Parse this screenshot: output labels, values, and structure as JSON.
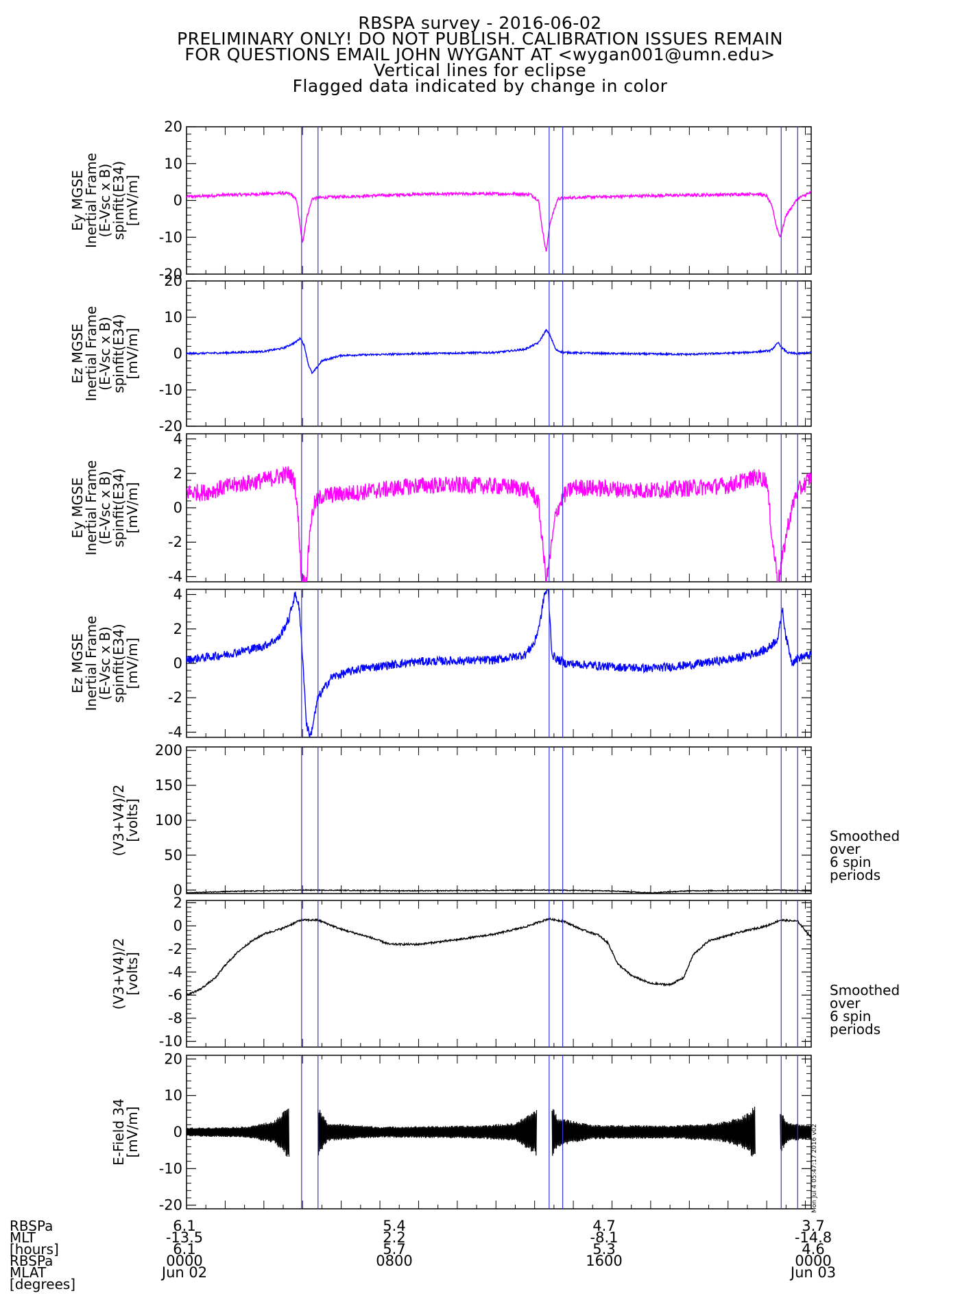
{
  "title_lines": [
    "RBSPA survey - 2016-06-02",
    "PRELIMINARY ONLY! DO NOT PUBLISH. CALIBRATION ISSUES REMAIN",
    "FOR QUESTIONS EMAIL JOHN WYGANT AT <wygan001@umn.edu>",
    "Vertical lines for eclipse",
    "Flagged data indicated by change in color"
  ],
  "colors": {
    "ey": "#ff00ff",
    "ez": "#0000ff",
    "black": "#000000",
    "eclipse": "#3333dd"
  },
  "eclipse_hours": [
    5.95,
    6.8,
    18.75,
    19.45,
    30.75,
    31.6
  ],
  "time_axis": {
    "range_hours": [
      0,
      32.3
    ],
    "label_hours": [
      0,
      10.77,
      21.53,
      32.3
    ],
    "columns": [
      {
        "lines": [
          "6.1",
          "-13.5",
          "6.1",
          "0000",
          "Jun 02"
        ]
      },
      {
        "lines": [
          "5.4",
          "2.2",
          "5.7",
          "0800",
          ""
        ]
      },
      {
        "lines": [
          "4.7",
          "-8.1",
          "5.3",
          "1600",
          ""
        ]
      },
      {
        "lines": [
          "3.7",
          "-14.8",
          "4.6",
          "0000",
          "Jun 03"
        ]
      }
    ],
    "row_labels": [
      "RBSPa",
      "MLT",
      "[hours]",
      "RBSPa",
      "MLAT",
      "[degrees]"
    ]
  },
  "side_notes": {
    "panel5": [
      "Smoothed",
      "over",
      "6 spin",
      "periods"
    ],
    "panel6": [
      "Smoothed",
      "over",
      "6 spin",
      "periods"
    ]
  },
  "timestamp_stamp": "Mon Jul  4 05:47:17 2016 v02",
  "chart_data": [
    {
      "type": "line",
      "id": "ey1",
      "color": "ey",
      "ylabel": [
        "Ey MGSE",
        "Inertial Frame",
        "(E-Vsc x B)",
        "spinfit(E34)",
        "[mV/m]"
      ],
      "ylim": [
        -20,
        20
      ],
      "yticks": [
        "20",
        "10",
        "0",
        "-10",
        "-20"
      ],
      "yticks_v": [
        20,
        10,
        0,
        -10,
        -20
      ],
      "x": [
        0,
        1,
        2,
        3,
        4,
        5,
        5.4,
        5.7,
        5.9,
        6.0,
        6.2,
        6.5,
        7,
        9,
        12,
        15,
        17,
        17.8,
        18.2,
        18.4,
        18.6,
        18.8,
        19.2,
        20,
        24,
        28,
        29.5,
        30,
        30.3,
        30.5,
        30.7,
        31,
        31.6,
        32.3
      ],
      "y": [
        1.0,
        1.2,
        1.5,
        1.6,
        1.8,
        2.0,
        1.7,
        0,
        -8,
        -11.5,
        -5,
        0.5,
        0.8,
        1.2,
        1.7,
        1.8,
        1.8,
        1.6,
        0,
        -8,
        -14,
        -6,
        0.5,
        0.8,
        1.3,
        1.6,
        1.8,
        1.2,
        -2,
        -7,
        -10,
        -4,
        0.5,
        2.2
      ],
      "noise": 0.4
    },
    {
      "type": "line",
      "id": "ez1",
      "color": "ez",
      "ylabel": [
        "Ez MGSE",
        "Inertial Frame",
        "(E-Vsc x B)",
        "spinfit(E34)",
        "[mV/m]"
      ],
      "ylim": [
        -20,
        20
      ],
      "yticks": [
        "20",
        "10",
        "0",
        "-10",
        "-20"
      ],
      "yticks_v": [
        20,
        10,
        0,
        -10,
        -20
      ],
      "x": [
        0,
        2,
        4,
        5,
        5.6,
        5.9,
        6.1,
        6.3,
        6.5,
        7,
        8,
        12,
        16,
        17.5,
        18.2,
        18.6,
        18.8,
        19.1,
        19.5,
        22,
        26,
        29,
        30.2,
        30.6,
        30.8,
        31.1,
        31.6,
        32.3
      ],
      "y": [
        0,
        0.2,
        0.6,
        1.5,
        3,
        4.3,
        2,
        -3,
        -5.5,
        -2,
        -0.5,
        0,
        0.3,
        1.2,
        3,
        6.5,
        5,
        1,
        0.3,
        0,
        -0.2,
        0.3,
        0.8,
        3,
        1.5,
        0.2,
        0,
        0.3
      ],
      "noise": 0.25
    },
    {
      "type": "line",
      "id": "ey2",
      "color": "ey",
      "ylabel": [
        "Ey MGSE",
        "Inertial Frame",
        "(E-Vsc x B)",
        "spinfit(E34)",
        "[mV/m]"
      ],
      "ylim": [
        -4.3,
        4.3
      ],
      "yticks": [
        "4",
        "2",
        "0",
        "-2",
        "-4"
      ],
      "yticks_v": [
        4,
        2,
        0,
        -2,
        -4
      ],
      "x": [
        0,
        1,
        2,
        3,
        4,
        5,
        5.3,
        5.6,
        5.8,
        5.95,
        6.2,
        6.4,
        6.6,
        7,
        9,
        12,
        15,
        17,
        17.8,
        18.2,
        18.4,
        18.6,
        18.9,
        19.1,
        19.5,
        20,
        24,
        28,
        29.5,
        30,
        30.3,
        30.6,
        31.1,
        31.5,
        32.3
      ],
      "y": [
        0.9,
        0.9,
        1.2,
        1.4,
        1.6,
        1.9,
        2.0,
        1.5,
        -1,
        -4.3,
        -4.3,
        -1,
        0.2,
        0.7,
        0.9,
        1.3,
        1.3,
        1.2,
        1.0,
        0.3,
        -2,
        -4.3,
        -2,
        -0.3,
        0.7,
        1.2,
        1.0,
        1.3,
        1.8,
        1.6,
        -2,
        -4.3,
        -1,
        0.8,
        1.8
      ],
      "noise": 0.5
    },
    {
      "type": "line",
      "id": "ez2",
      "color": "ez",
      "ylabel": [
        "Ez MGSE",
        "Inertial Frame",
        "(E-Vsc x B)",
        "spinfit(E34)",
        "[mV/m]"
      ],
      "ylim": [
        -4.3,
        4.3
      ],
      "yticks": [
        "4",
        "2",
        "0",
        "-2",
        "-4"
      ],
      "yticks_v": [
        4,
        2,
        0,
        -2,
        -4
      ],
      "x": [
        0,
        2,
        4,
        4.8,
        5.3,
        5.6,
        5.8,
        6.0,
        6.2,
        6.4,
        6.8,
        7.5,
        9,
        12,
        16,
        17.5,
        18.0,
        18.3,
        18.5,
        18.7,
        18.9,
        19.2,
        19.6,
        22,
        24,
        26,
        28.5,
        30,
        30.6,
        30.8,
        31.0,
        31.3,
        31.6,
        32.3
      ],
      "y": [
        0.2,
        0.5,
        1.0,
        1.5,
        2.6,
        4.0,
        3.5,
        0.5,
        -3.5,
        -4.3,
        -2,
        -0.8,
        -0.3,
        0.1,
        0.2,
        0.5,
        1.2,
        2.5,
        4.0,
        4.3,
        0.5,
        0.2,
        0,
        -0.2,
        -0.3,
        -0.1,
        0.3,
        0.8,
        1.5,
        3.2,
        1.5,
        0.1,
        0.3,
        0.5
      ],
      "noise": 0.25
    },
    {
      "type": "line",
      "id": "v1",
      "color": "black",
      "ylabel": [
        "(V3+V4)/2",
        "[volts]"
      ],
      "ylim": [
        -5,
        205
      ],
      "yticks": [
        "200",
        "150",
        "100",
        "50",
        "0"
      ],
      "yticks_v": [
        200,
        150,
        100,
        50,
        0
      ],
      "x": [
        0,
        2,
        6,
        12,
        18.6,
        22,
        24,
        26,
        30.5,
        32.3
      ],
      "y": [
        -4,
        -2,
        0,
        -1,
        0,
        -1,
        -4,
        -1,
        0,
        -1
      ],
      "noise": 0.6
    },
    {
      "type": "line",
      "id": "v2",
      "color": "black",
      "ylabel": [
        "(V3+V4)/2",
        "[volts]"
      ],
      "ylim": [
        -10.5,
        2.2
      ],
      "yticks": [
        "2",
        "0",
        "-2",
        "-4",
        "-6",
        "-8",
        "-10"
      ],
      "yticks_v": [
        2,
        0,
        -2,
        -4,
        -6,
        -8,
        -10
      ],
      "x": [
        0,
        0.7,
        1.5,
        2,
        2.7,
        3.3,
        4,
        5,
        5.9,
        6.8,
        8,
        9.5,
        10.5,
        12,
        14,
        16,
        17.5,
        18.7,
        19.5,
        20.4,
        21.3,
        21.8,
        22.3,
        23,
        24,
        25,
        25.7,
        26.2,
        27,
        28.5,
        30,
        30.7,
        31.6,
        32.3
      ],
      "y": [
        -6.0,
        -5.5,
        -4.5,
        -3.4,
        -2.2,
        -1.4,
        -0.7,
        -0.2,
        0.5,
        0.5,
        -0.3,
        -1.0,
        -1.6,
        -1.6,
        -1.2,
        -0.7,
        -0.1,
        0.6,
        0.4,
        -0.3,
        -0.8,
        -1.5,
        -3.3,
        -4.3,
        -5.0,
        -5.1,
        -4.5,
        -2.5,
        -1.3,
        -0.6,
        0.0,
        0.5,
        0.4,
        -1.0
      ],
      "noise": 0.08
    },
    {
      "type": "line",
      "id": "e34",
      "color": "black",
      "ylabel": [
        "E-Field 34",
        "[mV/m]"
      ],
      "ylim": [
        -21,
        21
      ],
      "yticks": [
        "20",
        "10",
        "0",
        "-10",
        "-20"
      ],
      "yticks_v": [
        20,
        10,
        0,
        -10,
        -20
      ],
      "envelope": [
        [
          0,
          1.2
        ],
        [
          3,
          1.5
        ],
        [
          4.5,
          3
        ],
        [
          5.1,
          6
        ],
        [
          5.3,
          8.5
        ]
      ],
      "segments": [
        [
          0,
          5.3
        ],
        [
          6.8,
          18.1
        ],
        [
          18.9,
          29.4
        ],
        [
          30.7,
          32.3
        ]
      ],
      "segment_envelopes": [
        [
          [
            0,
            1.2
          ],
          [
            3,
            1.5
          ],
          [
            4.5,
            3
          ],
          [
            5.1,
            6
          ],
          [
            5.3,
            8.5
          ]
        ],
        [
          [
            6.8,
            7
          ],
          [
            7.3,
            2.5
          ],
          [
            10,
            1.5
          ],
          [
            15,
            1.8
          ],
          [
            17,
            2.5
          ],
          [
            18.0,
            6
          ],
          [
            18.1,
            7
          ]
        ],
        [
          [
            18.9,
            7.5
          ],
          [
            19.2,
            4
          ],
          [
            21,
            2
          ],
          [
            25,
            1.8
          ],
          [
            27.5,
            2.5
          ],
          [
            28.8,
            4.5
          ],
          [
            29.4,
            7.5
          ]
        ],
        [
          [
            30.7,
            6
          ],
          [
            31.1,
            2.5
          ],
          [
            32.3,
            2
          ]
        ]
      ]
    }
  ]
}
